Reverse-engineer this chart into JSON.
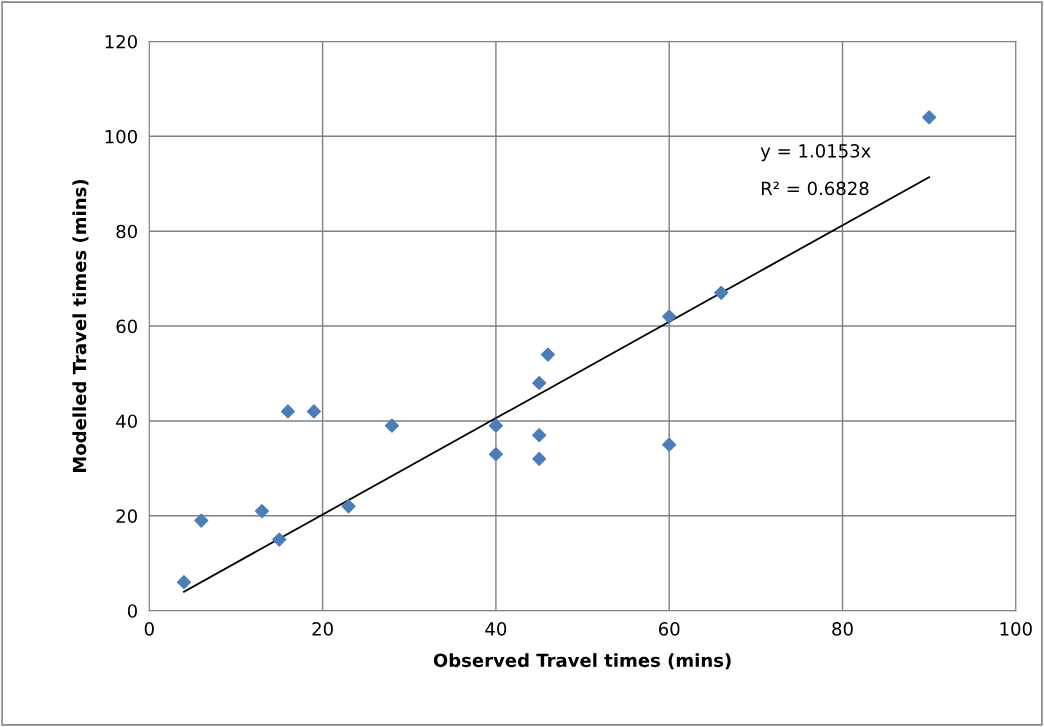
{
  "chart_data": {
    "type": "scatter",
    "xlabel": "Observed Travel times (mins)",
    "ylabel": "Modelled Travel times (mins)",
    "xlim": [
      0,
      100
    ],
    "xticks": [
      0,
      20,
      40,
      60,
      80,
      100
    ],
    "ylim": [
      0,
      120
    ],
    "yticks": [
      0,
      20,
      40,
      60,
      80,
      100,
      120
    ],
    "grid": true,
    "legend": false,
    "series": [
      {
        "marker": "diamond",
        "color": "#4a7ebb",
        "x": [
          4,
          6,
          13,
          15,
          16,
          19,
          23,
          28,
          40,
          40,
          45,
          45,
          45,
          46,
          60,
          60,
          66,
          90
        ],
        "values": [
          6,
          19,
          21,
          15,
          42,
          42,
          22,
          39,
          39,
          33,
          48,
          37,
          32,
          54,
          62,
          35,
          67,
          104
        ]
      },
      {
        "type": "line",
        "color": "#000000",
        "x": [
          4,
          90
        ],
        "values": [
          4,
          91.4
        ]
      }
    ],
    "annotations": [
      "y = 1.0153x",
      "R² = 0.6828"
    ]
  }
}
